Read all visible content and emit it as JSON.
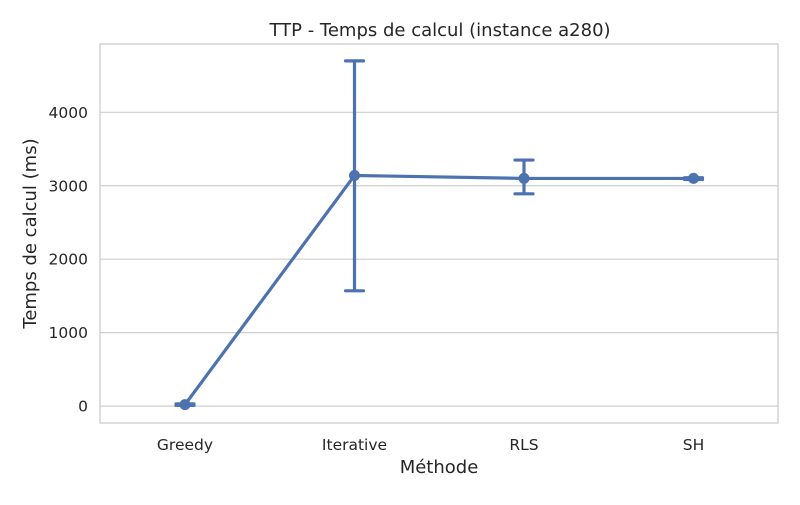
{
  "chart_data": {
    "type": "line",
    "title": "TTP - Temps de calcul (instance a280)",
    "xlabel": "Méthode",
    "ylabel": "Temps de calcul (ms)",
    "categories": [
      "Greedy",
      "Iterative",
      "RLS",
      "SH"
    ],
    "series": [
      {
        "values": [
          20,
          3140,
          3100,
          3100
        ],
        "error_low": [
          10,
          1570,
          2890,
          3085
        ],
        "error_high": [
          30,
          4700,
          3350,
          3110
        ]
      }
    ],
    "y_ticks": [
      "0",
      "1000",
      "2000",
      "3000",
      "4000"
    ],
    "y_tick_values": [
      0,
      1000,
      2000,
      3000,
      4000
    ],
    "ylim": [
      -230,
      4930
    ],
    "grid": "horizontal",
    "colors": {
      "series": "#4c72b0",
      "grid": "#cfcfcf",
      "text": "#262626"
    }
  }
}
